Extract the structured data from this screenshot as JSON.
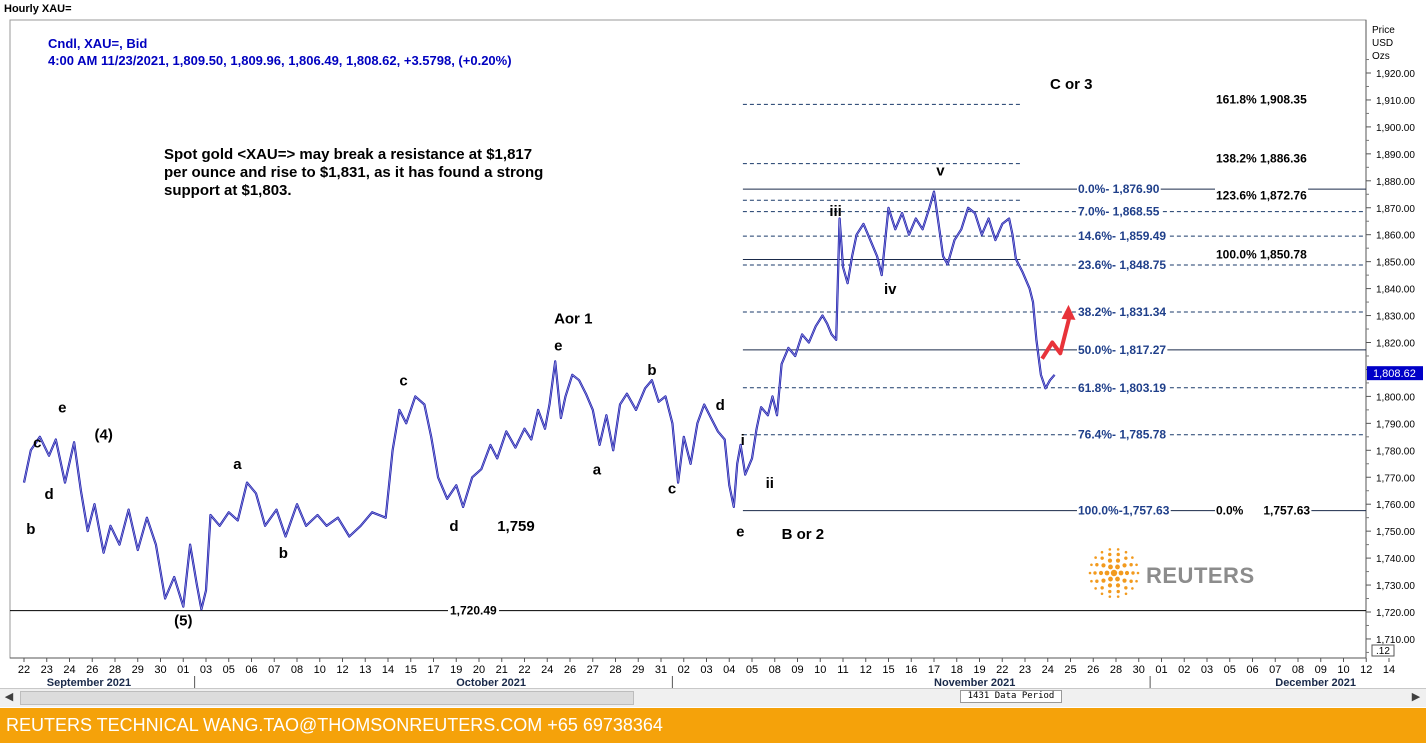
{
  "window": {
    "title": "Hourly XAU="
  },
  "info": {
    "line1": "Cndl, XAU=, Bid",
    "line2": "4:00 AM 11/23/2021, 1,809.50, 1,809.96, 1,806.49, 1,808.62, +3.5798, (+0.20%)"
  },
  "note": "Spot gold <XAU=> may break a resistance at $1,817\nper ounce and rise to $1,831, as it has found a strong\nsupport at $1,803.",
  "scrollbar": {
    "period_label": "1431 Data Period"
  },
  "footer": {
    "text": "REUTERS TECHNICAL  WANG.TAO@THOMSONREUTERS.COM  +65 69738364"
  },
  "logo": {
    "text": "REUTERS",
    "icon": "reuters-dot-logo-icon"
  },
  "colors": {
    "price_line": "#1c1cb0",
    "fib_text": "#1f3f8a",
    "arrow": "#e8333a",
    "footer_bg": "#f5a20a",
    "info_text": "#0000c0"
  },
  "chart_data": {
    "type": "line",
    "title": "Hourly XAU=",
    "ylabel": "Price USD Ozs",
    "ylim": [
      1703,
      1926
    ],
    "y_ticks": [
      1710,
      1720,
      1730,
      1740,
      1750,
      1760,
      1770,
      1780,
      1790,
      1800,
      1810,
      1820,
      1830,
      1840,
      1850,
      1860,
      1870,
      1880,
      1890,
      1900,
      1910,
      1920
    ],
    "y_tick_labels": [
      "1,710.00",
      "1,720.00",
      "1,730.00",
      "1,740.00",
      "1,750.00",
      "1,760.00",
      "1,770.00",
      "1,780.00",
      "1,790.00",
      "1,800.00",
      "1,810.00",
      "1,820.00",
      "1,830.00",
      "1,840.00",
      "1,850.00",
      "1,860.00",
      "1,870.00",
      "1,880.00",
      "1,890.00",
      "1,900.00",
      "1,910.00",
      "1,920.00"
    ],
    "y_axis_header": [
      "Price",
      "USD",
      "Ozs"
    ],
    "y_axis_footer": ".12",
    "last_price_label": "1,808.62",
    "last_price": 1808.62,
    "x_day_labels": [
      "22",
      "23",
      "24",
      "26",
      "28",
      "29",
      "30",
      "01",
      "03",
      "05",
      "06",
      "07",
      "08",
      "10",
      "12",
      "13",
      "14",
      "15",
      "17",
      "19",
      "20",
      "21",
      "22",
      "24",
      "26",
      "27",
      "28",
      "29",
      "31",
      "02",
      "03",
      "04",
      "05",
      "08",
      "09",
      "10",
      "11",
      "12",
      "15",
      "16",
      "17",
      "18",
      "19",
      "22",
      "23",
      "24",
      "25",
      "26",
      "28",
      "30",
      "01",
      "02",
      "03",
      "05",
      "06",
      "07",
      "08",
      "09",
      "10",
      "12",
      "14"
    ],
    "x_months": [
      {
        "label": "September 2021",
        "day_index": 1
      },
      {
        "label": "October 2021",
        "day_index": 19
      },
      {
        "label": "November 2021",
        "day_index": 40
      },
      {
        "label": "December 2021",
        "day_index": 55
      }
    ],
    "x_month_ticks": [
      7.5,
      28.5,
      49.5
    ],
    "series": [
      {
        "points": [
          [
            0,
            1768
          ],
          [
            0.3,
            1780
          ],
          [
            0.7,
            1785
          ],
          [
            1.1,
            1778
          ],
          [
            1.4,
            1784
          ],
          [
            1.8,
            1768
          ],
          [
            2.2,
            1783
          ],
          [
            2.5,
            1765
          ],
          [
            2.8,
            1750
          ],
          [
            3.1,
            1760
          ],
          [
            3.5,
            1742
          ],
          [
            3.8,
            1752
          ],
          [
            4.2,
            1745
          ],
          [
            4.6,
            1758
          ],
          [
            5.0,
            1743
          ],
          [
            5.4,
            1755
          ],
          [
            5.8,
            1745
          ],
          [
            6.2,
            1725
          ],
          [
            6.6,
            1733
          ],
          [
            7.0,
            1722
          ],
          [
            7.3,
            1745
          ],
          [
            7.6,
            1730
          ],
          [
            7.8,
            1721
          ],
          [
            8.0,
            1728
          ],
          [
            8.2,
            1756
          ],
          [
            8.6,
            1752
          ],
          [
            9.0,
            1757
          ],
          [
            9.4,
            1754
          ],
          [
            9.8,
            1768
          ],
          [
            10.2,
            1764
          ],
          [
            10.6,
            1752
          ],
          [
            11.1,
            1758
          ],
          [
            11.5,
            1748
          ],
          [
            12.0,
            1760
          ],
          [
            12.4,
            1752
          ],
          [
            12.9,
            1756
          ],
          [
            13.3,
            1752
          ],
          [
            13.8,
            1755
          ],
          [
            14.3,
            1748
          ],
          [
            14.8,
            1752
          ],
          [
            15.3,
            1757
          ],
          [
            15.9,
            1755
          ],
          [
            16.2,
            1780
          ],
          [
            16.5,
            1795
          ],
          [
            16.8,
            1790
          ],
          [
            17.2,
            1800
          ],
          [
            17.6,
            1797
          ],
          [
            17.9,
            1785
          ],
          [
            18.2,
            1770
          ],
          [
            18.6,
            1762
          ],
          [
            19.0,
            1767
          ],
          [
            19.3,
            1759
          ],
          [
            19.7,
            1770
          ],
          [
            20.1,
            1773
          ],
          [
            20.5,
            1782
          ],
          [
            20.8,
            1777
          ],
          [
            21.2,
            1787
          ],
          [
            21.6,
            1781
          ],
          [
            22.0,
            1788
          ],
          [
            22.3,
            1784
          ],
          [
            22.6,
            1795
          ],
          [
            22.9,
            1788
          ],
          [
            23.1,
            1797
          ],
          [
            23.35,
            1813
          ],
          [
            23.6,
            1792
          ],
          [
            23.8,
            1800
          ],
          [
            24.1,
            1808
          ],
          [
            24.4,
            1806
          ],
          [
            24.7,
            1801
          ],
          [
            25.0,
            1795
          ],
          [
            25.3,
            1782
          ],
          [
            25.6,
            1793
          ],
          [
            25.9,
            1780
          ],
          [
            26.2,
            1797
          ],
          [
            26.5,
            1801
          ],
          [
            26.9,
            1795
          ],
          [
            27.3,
            1803
          ],
          [
            27.6,
            1806
          ],
          [
            27.9,
            1798
          ],
          [
            28.2,
            1800
          ],
          [
            28.5,
            1790
          ],
          [
            28.75,
            1768
          ],
          [
            29.0,
            1785
          ],
          [
            29.3,
            1775
          ],
          [
            29.6,
            1790
          ],
          [
            29.9,
            1797
          ],
          [
            30.2,
            1792
          ],
          [
            30.5,
            1787
          ],
          [
            30.8,
            1784
          ],
          [
            31.0,
            1767
          ],
          [
            31.2,
            1759
          ],
          [
            31.35,
            1775
          ],
          [
            31.5,
            1782
          ],
          [
            31.7,
            1771
          ],
          [
            32.0,
            1777
          ],
          [
            32.2,
            1788
          ],
          [
            32.4,
            1796
          ],
          [
            32.7,
            1793
          ],
          [
            32.9,
            1800
          ],
          [
            33.1,
            1793
          ],
          [
            33.3,
            1812
          ],
          [
            33.6,
            1818
          ],
          [
            33.9,
            1815
          ],
          [
            34.2,
            1823
          ],
          [
            34.5,
            1820
          ],
          [
            34.8,
            1826
          ],
          [
            35.1,
            1830
          ],
          [
            35.3,
            1827
          ],
          [
            35.5,
            1823
          ],
          [
            35.7,
            1821
          ],
          [
            35.85,
            1866
          ],
          [
            36.0,
            1848
          ],
          [
            36.2,
            1842
          ],
          [
            36.4,
            1852
          ],
          [
            36.6,
            1860
          ],
          [
            36.9,
            1864
          ],
          [
            37.2,
            1858
          ],
          [
            37.5,
            1852
          ],
          [
            37.7,
            1845
          ],
          [
            38.0,
            1870
          ],
          [
            38.3,
            1862
          ],
          [
            38.6,
            1868
          ],
          [
            38.9,
            1860
          ],
          [
            39.2,
            1866
          ],
          [
            39.5,
            1862
          ],
          [
            39.8,
            1870
          ],
          [
            40.0,
            1876
          ],
          [
            40.2,
            1864
          ],
          [
            40.4,
            1852
          ],
          [
            40.6,
            1849
          ],
          [
            40.9,
            1858
          ],
          [
            41.2,
            1862
          ],
          [
            41.5,
            1870
          ],
          [
            41.8,
            1868
          ],
          [
            42.1,
            1860
          ],
          [
            42.4,
            1866
          ],
          [
            42.7,
            1858
          ],
          [
            43.0,
            1864
          ],
          [
            43.3,
            1866
          ],
          [
            43.45,
            1860
          ],
          [
            43.6,
            1851
          ],
          [
            43.9,
            1846
          ],
          [
            44.2,
            1840
          ],
          [
            44.35,
            1835
          ],
          [
            44.5,
            1821
          ],
          [
            44.7,
            1808
          ],
          [
            44.9,
            1803
          ],
          [
            45.1,
            1806
          ],
          [
            45.3,
            1808
          ]
        ]
      }
    ],
    "levels": [
      {
        "value": 1908.35,
        "label_right": "161.8% 1,908.35",
        "style": "dashed",
        "x_from": 31.6,
        "x_to": 43.8
      },
      {
        "value": 1886.36,
        "label_right": "138.2% 1,886.36",
        "style": "dashed",
        "x_from": 31.6,
        "x_to": 43.8
      },
      {
        "value": 1876.9,
        "label": "0.0%- 1,876.90",
        "style": "solid",
        "x_from": 31.6,
        "x_to": 60
      },
      {
        "value": 1872.76,
        "label_right": "123.6% 1,872.76",
        "style": "dashed",
        "x_from": 31.6,
        "x_to": 43.8
      },
      {
        "value": 1868.55,
        "label": "7.0%- 1,868.55",
        "style": "dashed",
        "x_from": 31.6,
        "x_to": 60
      },
      {
        "value": 1859.49,
        "label": "14.6%- 1,859.49",
        "style": "dashed",
        "x_from": 31.6,
        "x_to": 60
      },
      {
        "value": 1850.78,
        "label_right": "100.0% 1,850.78",
        "style": "solid",
        "x_from": 31.6,
        "x_to": 43.8
      },
      {
        "value": 1848.75,
        "label": "23.6%- 1,848.75",
        "style": "dashed",
        "x_from": 31.6,
        "x_to": 60
      },
      {
        "value": 1831.34,
        "label": "38.2%- 1,831.34",
        "style": "dashed",
        "x_from": 31.6,
        "x_to": 60
      },
      {
        "value": 1817.27,
        "label": "50.0%- 1,817.27",
        "style": "solid",
        "x_from": 31.6,
        "x_to": 60
      },
      {
        "value": 1803.19,
        "label": "61.8%- 1,803.19",
        "style": "dashed",
        "x_from": 31.6,
        "x_to": 60
      },
      {
        "value": 1785.78,
        "label": "76.4%- 1,785.78",
        "style": "dashed",
        "x_from": 31.6,
        "x_to": 60
      },
      {
        "value": 1757.63,
        "label": "100.0%-1,757.63",
        "label_right": "0.0%      1,757.63",
        "style": "solid",
        "x_from": 31.6,
        "x_to": 60
      },
      {
        "value": 1720.49,
        "label_mid": "1,720.49",
        "style": "solid",
        "x_from": 0,
        "x_to": 60
      }
    ],
    "annotations": [
      {
        "text": "c",
        "x": 0.4,
        "y": 1781
      },
      {
        "text": "e",
        "x": 1.5,
        "y": 1794
      },
      {
        "text": "(4)",
        "x": 3.1,
        "y": 1784
      },
      {
        "text": "d",
        "x": 0.9,
        "y": 1762
      },
      {
        "text": "b",
        "x": 0.1,
        "y": 1749
      },
      {
        "text": "(5)",
        "x": 6.6,
        "y": 1715
      },
      {
        "text": "a",
        "x": 9.2,
        "y": 1773
      },
      {
        "text": "b",
        "x": 11.2,
        "y": 1740
      },
      {
        "text": "c",
        "x": 16.5,
        "y": 1804
      },
      {
        "text": "d",
        "x": 18.7,
        "y": 1750
      },
      {
        "text": "1,759",
        "x": 20.8,
        "y": 1750
      },
      {
        "text": "Aor 1",
        "x": 23.3,
        "y": 1827
      },
      {
        "text": "e",
        "x": 23.3,
        "y": 1817
      },
      {
        "text": "b",
        "x": 27.4,
        "y": 1808
      },
      {
        "text": "a",
        "x": 25.0,
        "y": 1771
      },
      {
        "text": "c",
        "x": 28.3,
        "y": 1764
      },
      {
        "text": "d",
        "x": 30.4,
        "y": 1795
      },
      {
        "text": "i",
        "x": 31.5,
        "y": 1782
      },
      {
        "text": "ii",
        "x": 32.6,
        "y": 1766
      },
      {
        "text": "e",
        "x": 31.3,
        "y": 1748
      },
      {
        "text": "B or 2",
        "x": 33.3,
        "y": 1747
      },
      {
        "text": "iii",
        "x": 35.4,
        "y": 1867
      },
      {
        "text": "iv",
        "x": 37.8,
        "y": 1838
      },
      {
        "text": "v",
        "x": 40.1,
        "y": 1882
      },
      {
        "text": "C or 3",
        "x": 45.1,
        "y": 1914
      }
    ],
    "projection_arrow": [
      [
        44.75,
        1814
      ],
      [
        45.2,
        1820
      ],
      [
        45.55,
        1816
      ],
      [
        46.0,
        1831
      ]
    ],
    "grid": false,
    "legend": "none"
  }
}
